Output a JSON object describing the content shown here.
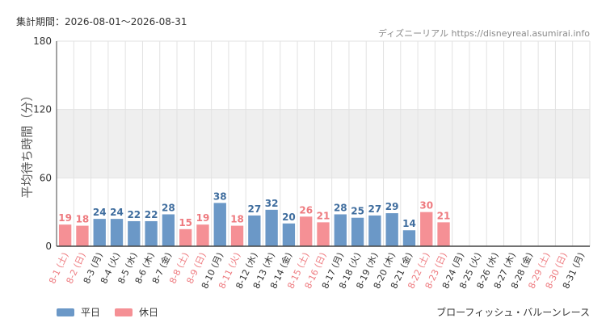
{
  "header": {
    "period": "集計期間：2026-08-01～2026-08-31",
    "source": "ディズニーリアル https://disneyreal.asumirai.info"
  },
  "footer": {
    "attraction": "ブローフィッシュ・バルーンレース"
  },
  "colors": {
    "weekday": "#6b98c7",
    "holiday": "#f59095",
    "weekday_label": "#3f6d9e",
    "holiday_label": "#ee7a7f",
    "band": "#efefef",
    "grid": "#e2e2e2",
    "axis": "#444444"
  },
  "chart_data": {
    "type": "bar",
    "ylabel": "平均待ち時間（分）",
    "ylim": [
      0,
      180
    ],
    "yticks": [
      0,
      60,
      120,
      180
    ],
    "shaded_band": [
      60,
      120
    ],
    "grid": true,
    "legend": {
      "placement": "bottom-left",
      "entries": [
        {
          "key": "weekday",
          "label": "平日"
        },
        {
          "key": "holiday",
          "label": "休日"
        }
      ]
    },
    "categories": [
      "8-1 (土)",
      "8-2 (日)",
      "8-3 (月)",
      "8-4 (火)",
      "8-5 (水)",
      "8-6 (木)",
      "8-7 (金)",
      "8-8 (土)",
      "8-9 (日)",
      "8-10 (月)",
      "8-11 (火)",
      "8-12 (水)",
      "8-13 (木)",
      "8-14 (金)",
      "8-15 (土)",
      "8-16 (日)",
      "8-17 (月)",
      "8-18 (火)",
      "8-19 (水)",
      "8-20 (木)",
      "8-21 (金)",
      "8-22 (土)",
      "8-23 (日)",
      "8-24 (月)",
      "8-25 (火)",
      "8-26 (水)",
      "8-27 (木)",
      "8-28 (金)",
      "8-29 (土)",
      "8-30 (日)",
      "8-31 (月)"
    ],
    "values": [
      19,
      18,
      24,
      24,
      22,
      22,
      28,
      15,
      19,
      38,
      18,
      27,
      32,
      20,
      26,
      21,
      28,
      25,
      27,
      29,
      14,
      30,
      21,
      null,
      null,
      null,
      null,
      null,
      null,
      null,
      null
    ],
    "day_type": [
      "holiday",
      "holiday",
      "weekday",
      "weekday",
      "weekday",
      "weekday",
      "weekday",
      "holiday",
      "holiday",
      "weekday",
      "holiday",
      "weekday",
      "weekday",
      "weekday",
      "holiday",
      "holiday",
      "weekday",
      "weekday",
      "weekday",
      "weekday",
      "weekday",
      "holiday",
      "holiday",
      "weekday",
      "weekday",
      "weekday",
      "weekday",
      "weekday",
      "holiday",
      "holiday",
      "weekday"
    ]
  }
}
